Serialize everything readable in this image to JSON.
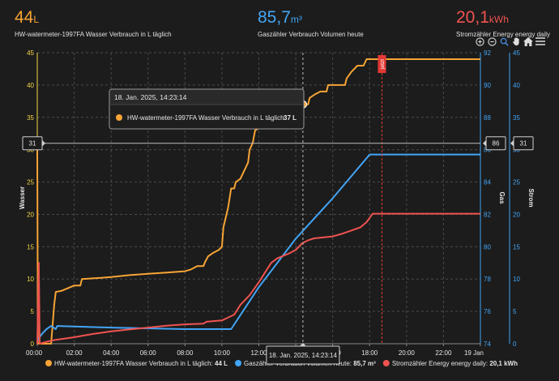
{
  "header": {
    "water": {
      "value": "44",
      "unit": "L",
      "label": "HW-watermeter-1997FA Wasser Verbrauch in L täglich",
      "color": "#f7a435"
    },
    "gas": {
      "value": "85,7",
      "unit": "m³",
      "label": "Gaszähler Verbrauch Volumen heute",
      "color": "#42a5f5"
    },
    "strom": {
      "value": "20,1",
      "unit": "kWh",
      "label": "Stromzähler Energy energy daily",
      "color": "#ef5350"
    }
  },
  "toolbar": {
    "icons": [
      "zoom-in-icon",
      "zoom-out-icon",
      "magnifier-icon",
      "pan-hand-icon",
      "home-icon",
      "menu-icon"
    ]
  },
  "chart_data": {
    "type": "line",
    "x_axis": {
      "min": "18. Jan. 2025 00:00",
      "max": "19. Jan. 2025 00:00",
      "ticks": [
        "00:00",
        "02:00",
        "04:00",
        "06:00",
        "08:00",
        "10:00",
        "12:00",
        "14:00",
        "16:00",
        "18:00",
        "20:00",
        "22:00",
        "19 Jan"
      ]
    },
    "y_axes": [
      {
        "id": "wasser",
        "label": "Wasser",
        "position": "left",
        "min": 0,
        "max": 45,
        "ticks": [
          0,
          5,
          10,
          15,
          20,
          25,
          30,
          35,
          40,
          45
        ],
        "color": "#f5d742"
      },
      {
        "id": "gas",
        "label": "Gas",
        "position": "right",
        "min": 74,
        "max": 92,
        "ticks": [
          74,
          76,
          78,
          80,
          82,
          84,
          86,
          88,
          90,
          92
        ],
        "color": "#42a5f5"
      },
      {
        "id": "strom",
        "label": "Strom",
        "position": "right",
        "min": 0,
        "max": 45,
        "ticks": [
          0,
          5,
          10,
          15,
          20,
          25,
          30,
          35,
          40,
          45
        ],
        "color": "#42a5f5"
      }
    ],
    "grid": true,
    "series": [
      {
        "name": "HW-watermeter-1997FA Wasser Verbrauch in L täglich",
        "axis": "wasser",
        "color": "#f7a435",
        "last_value": "44 L",
        "points": [
          [
            "00:00",
            30
          ],
          [
            "00:02",
            0
          ],
          [
            "00:45",
            0
          ],
          [
            "00:55",
            6
          ],
          [
            "01:00",
            8
          ],
          [
            "01:20",
            8.2
          ],
          [
            "01:40",
            8.6
          ],
          [
            "02:00",
            9
          ],
          [
            "02:20",
            9
          ],
          [
            "02:25",
            10
          ],
          [
            "03:00",
            10.1
          ],
          [
            "04:00",
            10.3
          ],
          [
            "05:00",
            10.6
          ],
          [
            "06:00",
            10.8
          ],
          [
            "07:00",
            11
          ],
          [
            "08:00",
            11.2
          ],
          [
            "08:20",
            11.5
          ],
          [
            "08:40",
            12
          ],
          [
            "09:00",
            12
          ],
          [
            "09:05",
            12.6
          ],
          [
            "09:15",
            13.5
          ],
          [
            "09:30",
            14
          ],
          [
            "09:50",
            14.5
          ],
          [
            "10:00",
            15
          ],
          [
            "10:05",
            18
          ],
          [
            "10:15",
            20
          ],
          [
            "10:20",
            21
          ],
          [
            "10:30",
            24
          ],
          [
            "10:40",
            24
          ],
          [
            "10:45",
            25
          ],
          [
            "11:00",
            25.5
          ],
          [
            "11:10",
            26.5
          ],
          [
            "11:15",
            27
          ],
          [
            "11:25",
            28
          ],
          [
            "11:30",
            30
          ],
          [
            "11:40",
            31
          ],
          [
            "11:48",
            33
          ],
          [
            "12:00",
            33.3
          ],
          [
            "12:20",
            33.5
          ],
          [
            "12:40",
            34
          ],
          [
            "13:00",
            34.5
          ],
          [
            "13:20",
            35
          ],
          [
            "13:40",
            35.5
          ],
          [
            "14:00",
            35.5
          ],
          [
            "14:20",
            37
          ],
          [
            "14:40",
            37
          ],
          [
            "14:45",
            38
          ],
          [
            "15:00",
            38.5
          ],
          [
            "15:20",
            39
          ],
          [
            "15:40",
            39
          ],
          [
            "15:45",
            40
          ],
          [
            "16:40",
            40
          ],
          [
            "16:45",
            41
          ],
          [
            "17:00",
            42
          ],
          [
            "17:20",
            43
          ],
          [
            "17:40",
            43
          ],
          [
            "17:50",
            44
          ],
          [
            "24:00",
            44
          ]
        ]
      },
      {
        "name": "Gaszähler Verbrauch Volumen heute",
        "axis": "gas",
        "color": "#42a5f5",
        "last_value": "85,7 m³",
        "points": [
          [
            "00:00",
            74.2
          ],
          [
            "00:15",
            74.6
          ],
          [
            "00:30",
            74.9
          ],
          [
            "00:45",
            75.1
          ],
          [
            "01:00",
            74.9
          ],
          [
            "01:05",
            75.1
          ],
          [
            "04:00",
            75.0
          ],
          [
            "08:00",
            74.9
          ],
          [
            "10:30",
            74.9
          ],
          [
            "12:00",
            77.5
          ],
          [
            "14:00",
            80.5
          ],
          [
            "16:00",
            83.0
          ],
          [
            "18:00",
            85.7
          ],
          [
            "18:40",
            85.7
          ],
          [
            "20:00",
            85.7
          ],
          [
            "24:00",
            85.7
          ]
        ]
      },
      {
        "name": "Stromzähler Energy energy daily",
        "axis": "strom",
        "color": "#ef5350",
        "last_value": "20,1 kWh",
        "points": [
          [
            "00:00",
            0
          ],
          [
            "00:05",
            12.5
          ],
          [
            "00:08",
            0
          ],
          [
            "00:30",
            0.3
          ],
          [
            "01:00",
            0.6
          ],
          [
            "02:00",
            1
          ],
          [
            "03:00",
            1.5
          ],
          [
            "04:00",
            1.9
          ],
          [
            "05:00",
            2.2
          ],
          [
            "06:00",
            2.5
          ],
          [
            "07:00",
            2.8
          ],
          [
            "08:00",
            3
          ],
          [
            "09:00",
            3.1
          ],
          [
            "09:10",
            3.4
          ],
          [
            "10:00",
            3.6
          ],
          [
            "10:40",
            4.5
          ],
          [
            "11:00",
            6
          ],
          [
            "11:30",
            7.5
          ],
          [
            "12:00",
            9.5
          ],
          [
            "12:20",
            11
          ],
          [
            "12:40",
            12.5
          ],
          [
            "13:00",
            13.2
          ],
          [
            "13:40",
            14
          ],
          [
            "14:00",
            14.5
          ],
          [
            "14:20",
            15.5
          ],
          [
            "14:40",
            16
          ],
          [
            "15:00",
            16.3
          ],
          [
            "16:00",
            16.6
          ],
          [
            "16:30",
            17
          ],
          [
            "17:00",
            17.5
          ],
          [
            "17:30",
            18
          ],
          [
            "17:50",
            18.8
          ],
          [
            "18:10",
            20.1
          ],
          [
            "20:00",
            20.1
          ],
          [
            "24:00",
            20.1
          ]
        ]
      }
    ],
    "crosshair": {
      "x": "14:23:14",
      "x_label": "18. Jan. 2025, 14:23:14",
      "y_label_left": "31",
      "y_label_gas": "86",
      "y_label_strom": "31"
    },
    "tooltip": {
      "title": "18. Jan. 2025, 14:23:14",
      "entries": [
        {
          "name": "HW-watermeter-1997FA Wasser Verbrauch in L täglich:",
          "value": "37 L",
          "color": "#f7a435"
        }
      ]
    },
    "annotation": {
      "x": "18:40",
      "text": "jetzt",
      "color": "#e53935"
    },
    "legend": {
      "placement": "bottom"
    }
  }
}
